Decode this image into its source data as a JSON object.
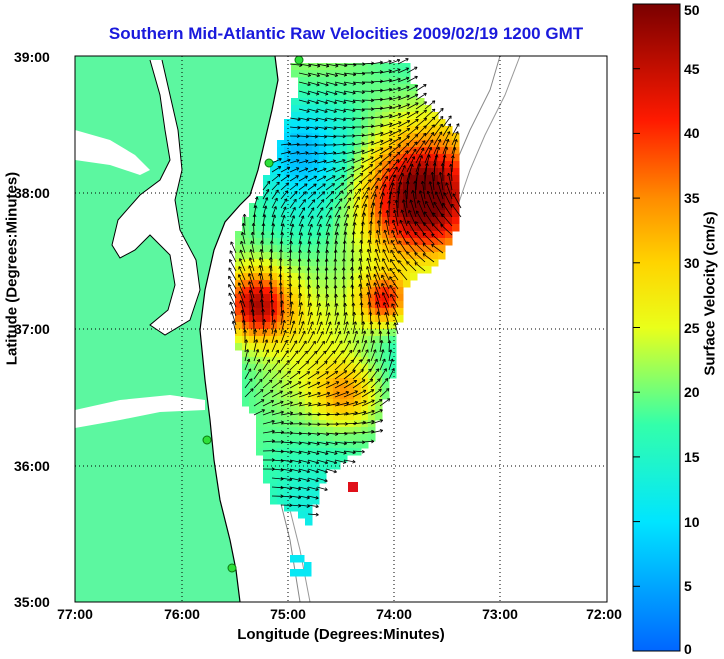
{
  "title": "Southern Mid-Atlantic Raw Velocities 2009/02/19 1200 GMT",
  "xlabel": "Longitude (Degrees:Minutes)",
  "ylabel": "Latitude (Degrees:Minutes)",
  "colorbar": {
    "label": "Surface Velocity (cm/s)",
    "ticks": [
      "0",
      "5",
      "10",
      "15",
      "20",
      "25",
      "30",
      "35",
      "40",
      "45",
      "50"
    ],
    "range": [
      0,
      50
    ]
  },
  "x_ticks": [
    "77:00",
    "76:00",
    "75:00",
    "74:00",
    "73:00",
    "72:00"
  ],
  "y_ticks": [
    "39:00",
    "38:00",
    "37:00",
    "36:00",
    "35:00"
  ],
  "colors": {
    "land": "#5cf7a0",
    "title": "#1a1adc",
    "station": "#2ee03a"
  }
}
